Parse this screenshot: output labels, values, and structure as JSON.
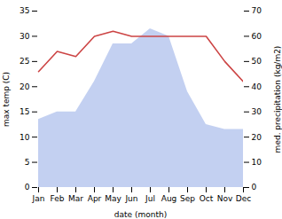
{
  "chart_data": {
    "type": "line",
    "xlabel": "date (month)",
    "ylabel": "max temp (C)",
    "y2label": "med. precipitation (kg/m2)",
    "categories": [
      "Jan",
      "Feb",
      "Mar",
      "Apr",
      "May",
      "Jun",
      "Jul",
      "Aug",
      "Sep",
      "Oct",
      "Nov",
      "Dec"
    ],
    "series": [
      {
        "type": "area",
        "color": "#b8c8ee",
        "axis": "y2",
        "values": [
          27,
          30,
          30,
          42,
          57,
          57,
          63,
          60,
          38,
          25,
          23,
          23
        ]
      },
      {
        "type": "line",
        "color": "#cc4444",
        "values": [
          23,
          27,
          26,
          30,
          31,
          30,
          30,
          30,
          30,
          30,
          25,
          21
        ]
      }
    ],
    "ylim": [
      0,
      35
    ],
    "yticks": [
      0,
      5,
      10,
      15,
      20,
      25,
      30,
      35
    ],
    "y2lim": [
      0,
      70
    ],
    "y2ticks": [
      0,
      10,
      20,
      30,
      40,
      50,
      60,
      70
    ],
    "grid": false
  }
}
